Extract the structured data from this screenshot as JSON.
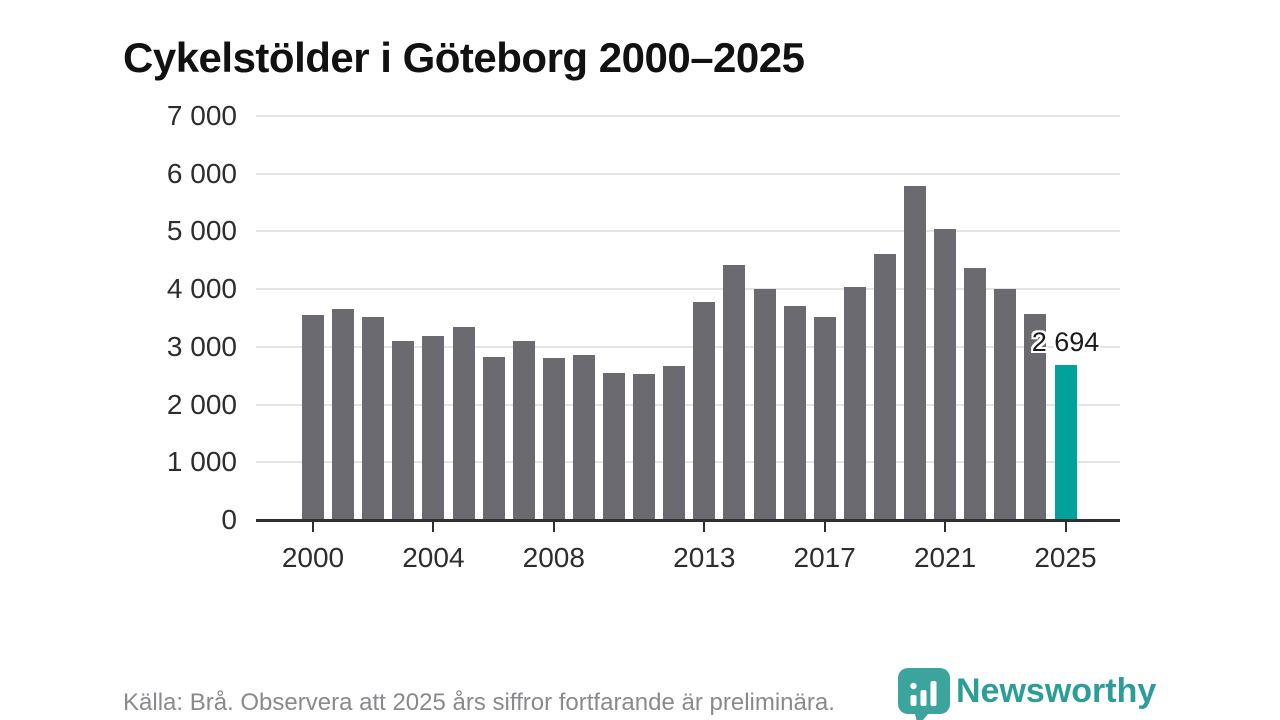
{
  "title": "Cykelstölder i Göteborg 2000–2025",
  "footer": {
    "source_note": "Källa: Brå. Observera att 2025 års siffror fortfarande är preliminära.",
    "brand": "Newsworthy"
  },
  "colors": {
    "bar": "#6b6a70",
    "highlight": "#00a29a",
    "brand_teal": "#2d9e97",
    "logo_teal": "#3ba49c",
    "grid": "#e4e4e4",
    "axis": "#2f2f2f",
    "text": "#1a1a1a",
    "muted": "#8a8a8e"
  },
  "chart_data": {
    "type": "bar",
    "title": "Cykelstölder i Göteborg 2000–2025",
    "categories": [
      2000,
      2001,
      2002,
      2003,
      2004,
      2005,
      2006,
      2007,
      2008,
      2009,
      2010,
      2011,
      2012,
      2013,
      2014,
      2015,
      2016,
      2017,
      2018,
      2019,
      2020,
      2021,
      2022,
      2023,
      2024,
      2025
    ],
    "values": [
      3560,
      3660,
      3510,
      3110,
      3180,
      3340,
      2830,
      3110,
      2810,
      2860,
      2540,
      2530,
      2670,
      3770,
      4410,
      4010,
      3710,
      3520,
      4040,
      4610,
      5790,
      5040,
      4370,
      4000,
      3570,
      2694
    ],
    "highlight_index": 25,
    "data_label": {
      "index": 25,
      "text": "2 694"
    },
    "xlabel": "",
    "ylabel": "",
    "ylim": [
      0,
      7000
    ],
    "ytick_interval": 1000,
    "ytick_labels": [
      "0",
      "1 000",
      "2 000",
      "3 000",
      "4 000",
      "5 000",
      "6 000",
      "7 000"
    ],
    "xticks": [
      {
        "year": 2000,
        "label": "2000"
      },
      {
        "year": 2004,
        "label": "2004"
      },
      {
        "year": 2008,
        "label": "2008"
      },
      {
        "year": 2013,
        "label": "2013"
      },
      {
        "year": 2017,
        "label": "2017"
      },
      {
        "year": 2021,
        "label": "2021"
      },
      {
        "year": 2025,
        "label": "2025"
      }
    ],
    "grid": true,
    "legend": null
  }
}
